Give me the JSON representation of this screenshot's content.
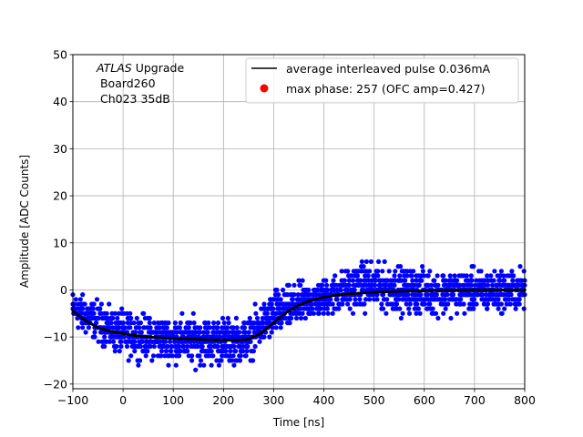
{
  "chart_data": {
    "type": "scatter",
    "xlabel": "Time [ns]",
    "ylabel": "Amplitude [ADC Counts]",
    "xlim": [
      -100,
      800
    ],
    "ylim": [
      -21,
      50
    ],
    "xticks": [
      -100,
      0,
      100,
      200,
      300,
      400,
      500,
      600,
      700,
      800
    ],
    "yticks": [
      -20,
      -10,
      0,
      10,
      20,
      30,
      40,
      50
    ],
    "grid": true,
    "legend_position": "top-right",
    "annotation": {
      "italic": "ATLAS",
      "line1_rest": " Upgrade",
      "line2": " Board260",
      "line3": " Ch023 35dB"
    },
    "legend": [
      {
        "label": "average interleaved pulse 0.036mA",
        "marker": "line",
        "color": "#000000"
      },
      {
        "label": "max phase: 257 (OFC amp=0.427)",
        "marker": "dot",
        "color": "#ff0000"
      }
    ],
    "series": [
      {
        "name": "average interleaved pulse 0.036mA",
        "kind": "line",
        "color": "#000000",
        "x": [
          -100,
          -75,
          -50,
          -25,
          0,
          25,
          50,
          75,
          100,
          125,
          150,
          175,
          200,
          225,
          250,
          275,
          300,
          325,
          350,
          375,
          400,
          425,
          450,
          500,
          550,
          600,
          650,
          700,
          750,
          800
        ],
        "y": [
          -4.5,
          -6.5,
          -8,
          -8.8,
          -9.3,
          -9.7,
          -10,
          -10.2,
          -10.3,
          -10.4,
          -10.5,
          -10.6,
          -10.7,
          -10.7,
          -10.5,
          -9.2,
          -7,
          -4.8,
          -3.2,
          -2.2,
          -1.5,
          -1.1,
          -0.8,
          -0.5,
          -0.3,
          -0.2,
          -0.1,
          0,
          0,
          0
        ]
      },
      {
        "name": "samples",
        "kind": "scatter",
        "color": "#0000ff",
        "x_range": [
          -100,
          800
        ],
        "spread": [
          {
            "x": -100,
            "lo": -9,
            "hi": 1
          },
          {
            "x": 0,
            "lo": -16,
            "hi": -3
          },
          {
            "x": 100,
            "lo": -17,
            "hi": -4
          },
          {
            "x": 200,
            "lo": -18,
            "hi": -4
          },
          {
            "x": 250,
            "lo": -17,
            "hi": -4
          },
          {
            "x": 300,
            "lo": -12,
            "hi": 2
          },
          {
            "x": 350,
            "lo": -9,
            "hi": 3
          },
          {
            "x": 400,
            "lo": -7,
            "hi": 4
          },
          {
            "x": 480,
            "lo": -6,
            "hi": 8
          },
          {
            "x": 600,
            "lo": -7,
            "hi": 6
          },
          {
            "x": 800,
            "lo": -6,
            "hi": 6
          }
        ]
      }
    ]
  }
}
